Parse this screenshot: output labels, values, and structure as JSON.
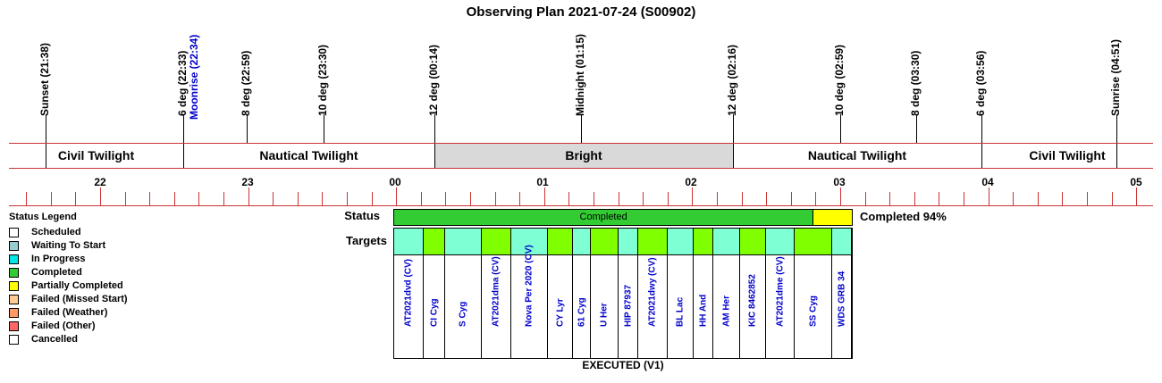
{
  "title": "Observing Plan 2021-07-24 (S00902)",
  "events": [
    {
      "label": "Sunset (21:38)",
      "color": "#000000"
    },
    {
      "label": "6 deg (22:33)",
      "color": "#000000"
    },
    {
      "label": "Moonrise (22:34)",
      "color": "#0000cc"
    },
    {
      "label": "8 deg (22:59)",
      "color": "#000000"
    },
    {
      "label": "10 deg (23:30)",
      "color": "#000000"
    },
    {
      "label": "12 deg (00:14)",
      "color": "#000000"
    },
    {
      "label": "Midnight (01:15)",
      "color": "#000000"
    },
    {
      "label": "12 deg (02:16)",
      "color": "#000000"
    },
    {
      "label": "10 deg (02:59)",
      "color": "#000000"
    },
    {
      "label": "8 deg (03:30)",
      "color": "#000000"
    },
    {
      "label": "6 deg (03:56)",
      "color": "#000000"
    },
    {
      "label": "Sunrise (04:51)",
      "color": "#000000"
    }
  ],
  "bands": [
    {
      "label": "Civil Twilight"
    },
    {
      "label": "Nautical Twilight"
    },
    {
      "label": "Bright"
    },
    {
      "label": "Nautical Twilight"
    },
    {
      "label": "Civil Twilight"
    }
  ],
  "hours": [
    "22",
    "23",
    "00",
    "01",
    "02",
    "03",
    "04",
    "05"
  ],
  "legend": {
    "title": "Status Legend",
    "items": [
      {
        "label": "Scheduled",
        "color": "#ffffff"
      },
      {
        "label": "Waiting To Start",
        "color": "#99cccc"
      },
      {
        "label": "In Progress",
        "color": "#00e5e5"
      },
      {
        "label": "Completed",
        "color": "#33cc33"
      },
      {
        "label": "Partially Completed",
        "color": "#ffff00"
      },
      {
        "label": "Failed (Missed Start)",
        "color": "#ffcc99"
      },
      {
        "label": "Failed (Weather)",
        "color": "#ff9966"
      },
      {
        "label": "Failed (Other)",
        "color": "#ff6666"
      },
      {
        "label": "Cancelled",
        "color": "#ffffff"
      }
    ]
  },
  "status": {
    "row_label": "Status",
    "bar_label": "Completed",
    "completed_fraction": 0.94,
    "completed_color": "#33cc33",
    "partial_color": "#ffff00",
    "percent_text": "Completed 94%"
  },
  "targets_label": "Targets",
  "targets": [
    {
      "name": "AT2021dvd (CV)",
      "color": "#7fffd4"
    },
    {
      "name": "CI Cyg",
      "color": "#7fff00"
    },
    {
      "name": "S Cyg",
      "color": "#7fffd4"
    },
    {
      "name": "AT2021dma (CV)",
      "color": "#7fff00"
    },
    {
      "name": "Nova Per 2020 (CV)",
      "color": "#7fffd4"
    },
    {
      "name": "CY Lyr",
      "color": "#7fff00"
    },
    {
      "name": "61 Cyg",
      "color": "#7fffd4"
    },
    {
      "name": "U Her",
      "color": "#7fff00"
    },
    {
      "name": "HIP 87937",
      "color": "#7fffd4"
    },
    {
      "name": "AT2021dwy (CV)",
      "color": "#7fff00"
    },
    {
      "name": "BL Lac",
      "color": "#7fffd4"
    },
    {
      "name": "HH And",
      "color": "#7fff00"
    },
    {
      "name": "AM Her",
      "color": "#7fffd4"
    },
    {
      "name": "KIC 8462852",
      "color": "#7fff00"
    },
    {
      "name": "AT2021dme (CV)",
      "color": "#7fffd4"
    },
    {
      "name": "SS Cyg",
      "color": "#7fff00"
    },
    {
      "name": "WDS GRB 34",
      "color": "#7fffd4"
    }
  ],
  "footer": "EXECUTED (V1)"
}
